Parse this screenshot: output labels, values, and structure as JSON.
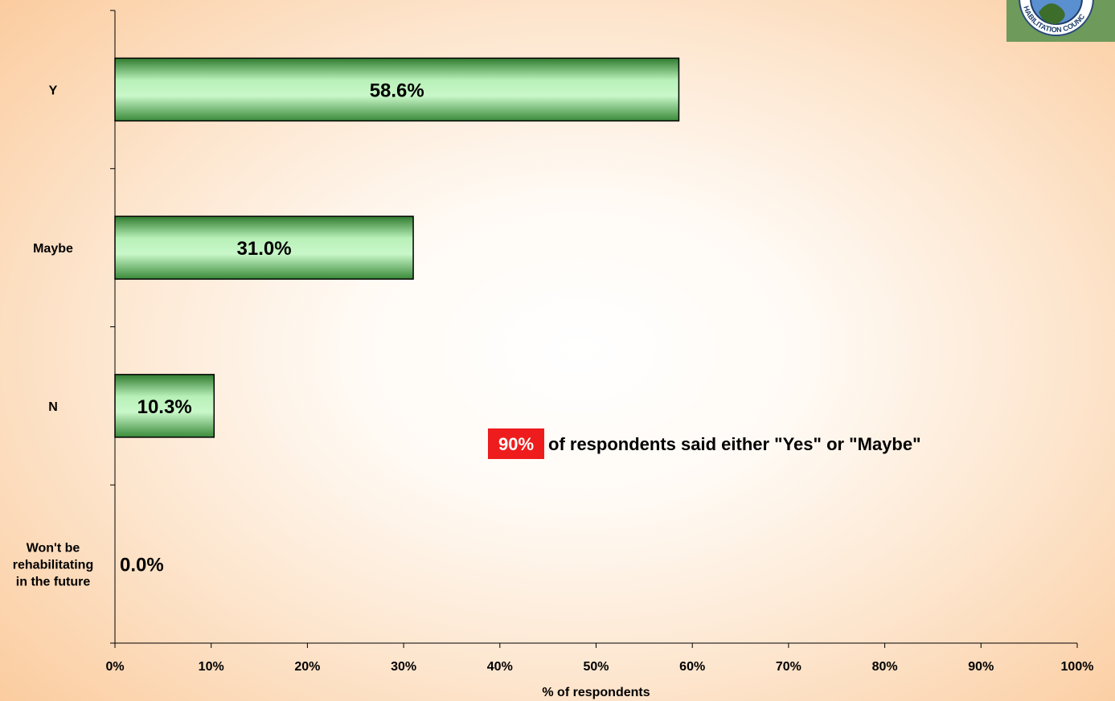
{
  "chart_data": {
    "type": "bar",
    "orientation": "horizontal",
    "categories": [
      "Y",
      "Maybe",
      "N",
      "Won't be rehabilitating in the future"
    ],
    "category_lines": [
      [
        "Y"
      ],
      [
        "Maybe"
      ],
      [
        "N"
      ],
      [
        "Won't be",
        "rehabilitating",
        "in the future"
      ]
    ],
    "values": [
      58.6,
      31.0,
      10.3,
      0.0
    ],
    "data_labels": [
      "58.6%",
      "31.0%",
      "10.3%",
      "0.0%"
    ],
    "xlabel": "% of respondents",
    "ylabel": "",
    "xlim": [
      0,
      100
    ],
    "xticks": [
      0,
      10,
      20,
      30,
      40,
      50,
      60,
      70,
      80,
      90,
      100
    ],
    "xtick_labels": [
      "0%",
      "10%",
      "20%",
      "30%",
      "40%",
      "50%",
      "60%",
      "70%",
      "80%",
      "90%",
      "100%"
    ],
    "grid": false,
    "legend": "none",
    "bar_color": "#9be59b",
    "annotation": {
      "highlight": "90%",
      "text": "of respondents said either \"Yes\" or \"Maybe\"",
      "highlight_bg": "#ee1c1c"
    }
  },
  "logo": {
    "text": "HABILITATION COUNC",
    "color": "#6e9a5c"
  }
}
